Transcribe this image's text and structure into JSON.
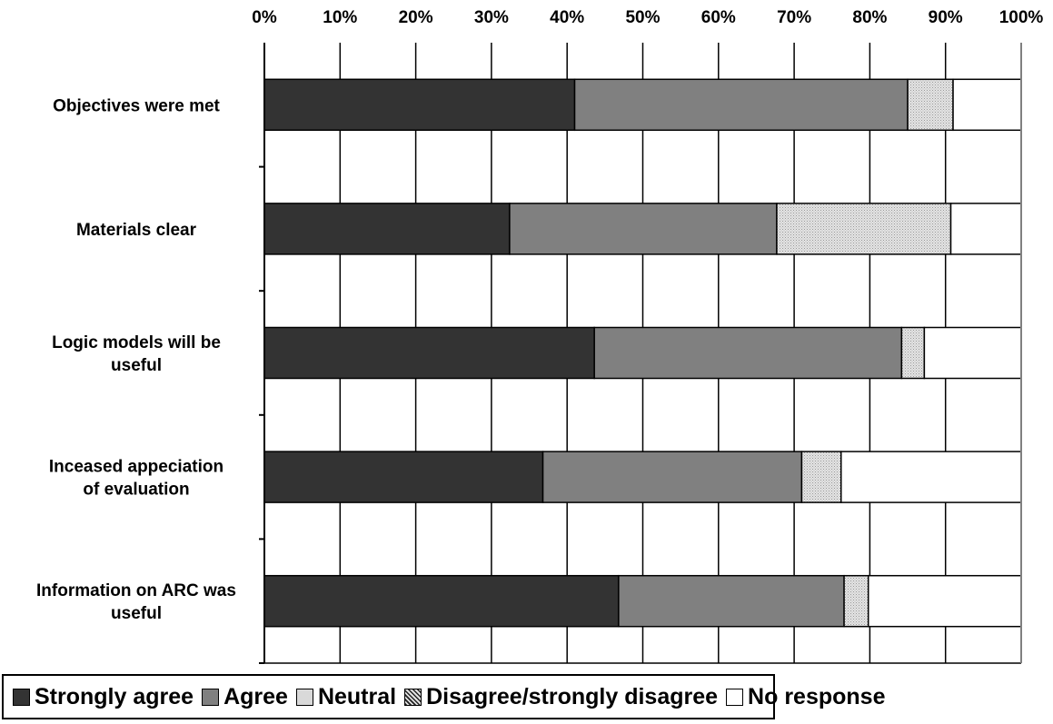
{
  "chart_data": {
    "type": "bar",
    "orientation": "horizontal",
    "stacked": true,
    "percent_stacked": true,
    "categories": [
      "Objectives were met",
      "Materials clear",
      "Logic models will be useful",
      "Inceased appeciation of evaluation",
      "Information on ARC was useful"
    ],
    "series": [
      {
        "name": "Strongly agree",
        "color": "#333333",
        "values": [
          41,
          32.4,
          43.6,
          36.8,
          46.8
        ]
      },
      {
        "name": "Agree",
        "color": "#808080",
        "values": [
          44,
          35.3,
          40.6,
          34.2,
          29.8
        ]
      },
      {
        "name": "Neutral",
        "color": "#d9d9d9",
        "values": [
          6,
          23,
          3,
          5.2,
          3.2
        ]
      },
      {
        "name": "Disagree/strongly disagree",
        "color": "#a6a6a6",
        "values": [
          0,
          0,
          0,
          0,
          0
        ]
      },
      {
        "name": "No response",
        "color": "#ffffff",
        "values": [
          9,
          9.3,
          12.8,
          23.8,
          20.2
        ]
      }
    ],
    "x_ticks": [
      "0%",
      "10%",
      "20%",
      "30%",
      "40%",
      "50%",
      "60%",
      "70%",
      "80%",
      "90%",
      "100%"
    ],
    "xlim": [
      0,
      100
    ],
    "x_axis_position": "top",
    "grid": true,
    "legend_position": "bottom",
    "title": "",
    "xlabel": "",
    "ylabel": ""
  }
}
